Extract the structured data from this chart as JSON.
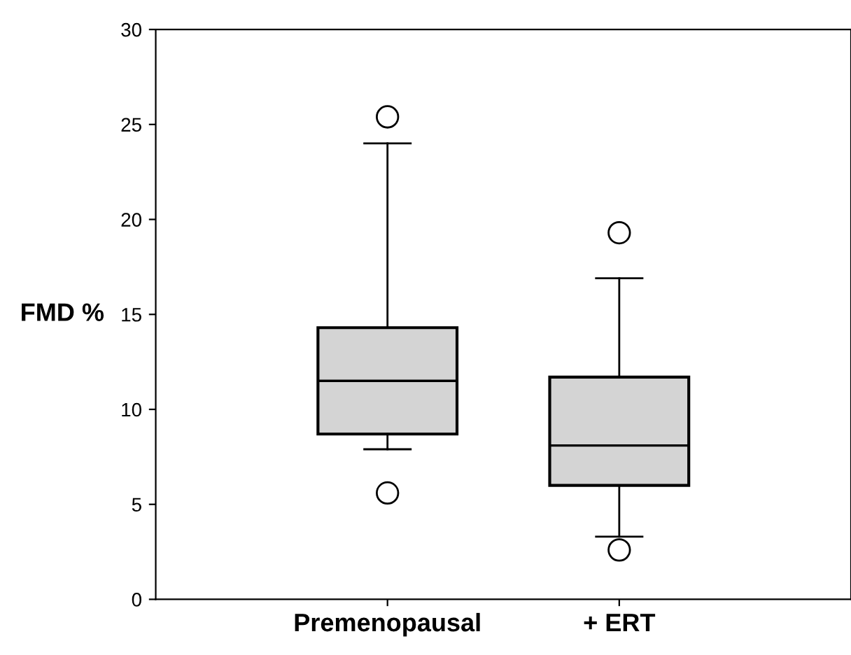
{
  "chart_data": {
    "type": "box",
    "ylabel": "FMD %",
    "categories": [
      "Premenopausal",
      "+ ERT"
    ],
    "boxes": [
      {
        "low": 7.9,
        "q1": 8.7,
        "median": 11.5,
        "q3": 14.3,
        "high": 24.0,
        "outliers": [
          25.4,
          5.6
        ]
      },
      {
        "low": 3.3,
        "q1": 6.0,
        "median": 8.1,
        "q3": 11.7,
        "high": 16.9,
        "outliers": [
          19.3,
          2.6
        ]
      }
    ],
    "color": "#d4d4d4",
    "ylim": [
      0,
      30
    ],
    "yticks": [
      0,
      5,
      10,
      15,
      20,
      25,
      30
    ],
    "grid": false,
    "legend": false
  }
}
